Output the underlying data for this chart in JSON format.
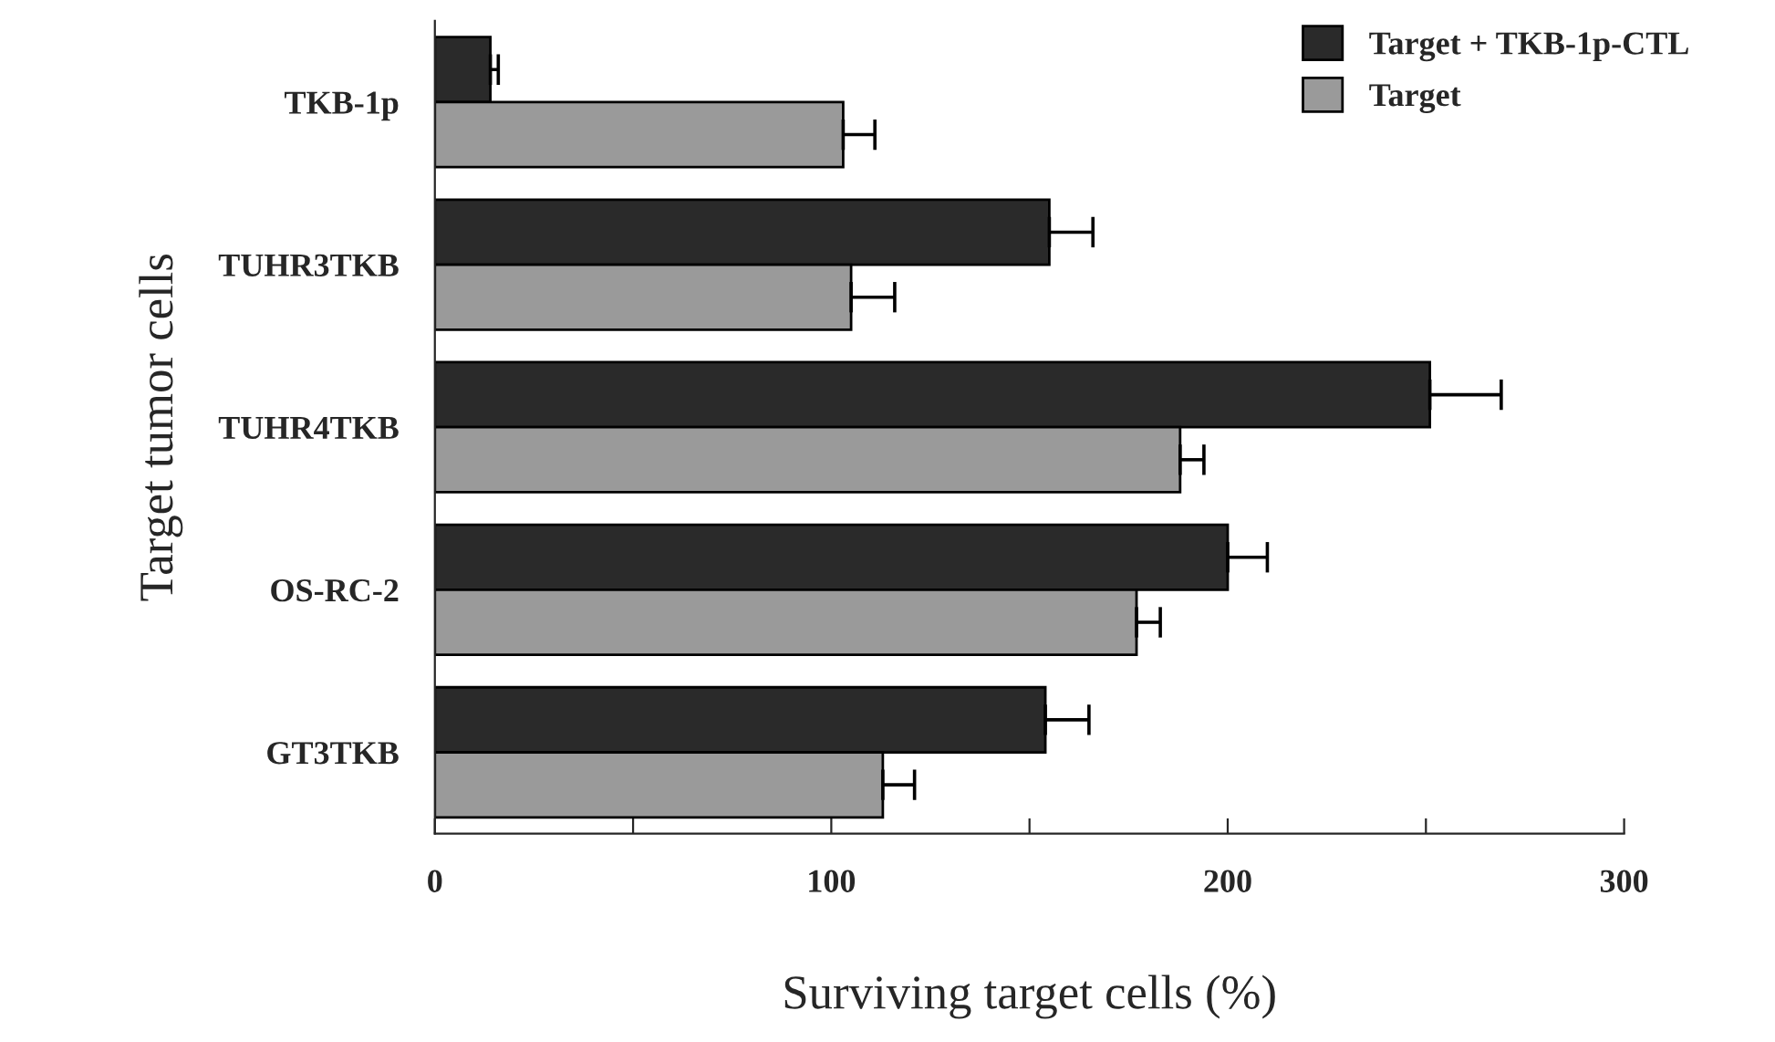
{
  "chart_data": {
    "type": "bar",
    "orientation": "horizontal",
    "xlabel": "Surviving target cells (%)",
    "ylabel": "Target tumor cells",
    "categories": [
      "TKB-1p",
      "TUHR3TKB",
      "TUHR4TKB",
      "OS-RC-2",
      "GT3TKB"
    ],
    "series": [
      {
        "name": "Target + TKB-1p-CTL",
        "color": "#2a2a2a",
        "values": [
          14,
          155,
          251,
          200,
          154
        ],
        "errors": [
          [
            14,
            16
          ],
          [
            155,
            166
          ],
          [
            251,
            269
          ],
          [
            200,
            210
          ],
          [
            154,
            165
          ]
        ]
      },
      {
        "name": "Target",
        "color": "#9a9a9a",
        "values": [
          103,
          105,
          188,
          177,
          113
        ],
        "errors": [
          [
            103,
            111
          ],
          [
            105,
            116
          ],
          [
            188,
            194
          ],
          [
            177,
            183
          ],
          [
            113,
            121
          ]
        ]
      }
    ],
    "xlim": [
      0,
      300
    ],
    "xticks": [
      0,
      {
        "value": 50,
        "label": null
      },
      100,
      {
        "value": 150,
        "label": null
      },
      200,
      {
        "value": 250,
        "label": null
      },
      300
    ],
    "legend": "top right",
    "grid": false
  }
}
